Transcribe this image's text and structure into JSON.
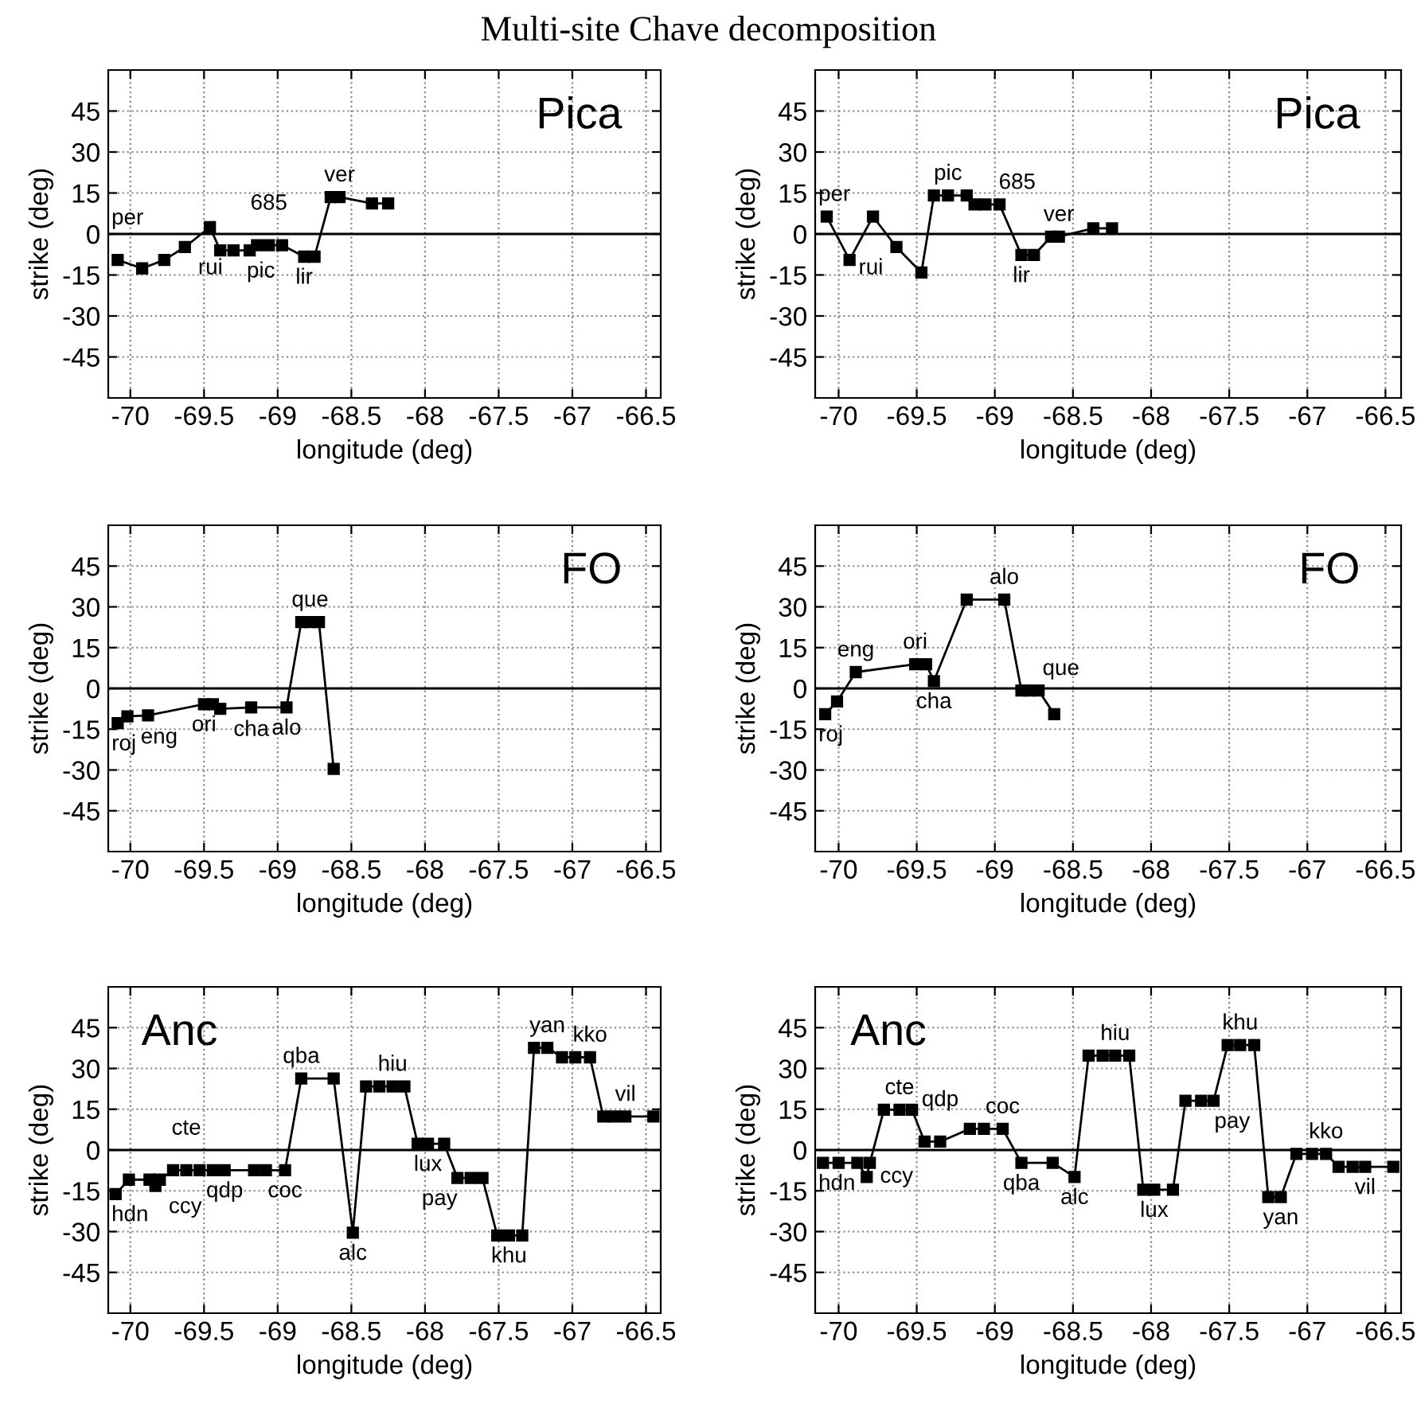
{
  "chart_data": [
    {
      "type": "line",
      "title": "Pica",
      "annotations": [
        "Multi-site Chave decomposition",
        {
          "text": "per",
          "x": -70.086,
          "y": -9.5
        },
        {
          "text": "rui",
          "x": -69.63,
          "y": -4.8
        },
        {
          "text": "pic",
          "x": -69.3,
          "y": -6.0
        },
        {
          "text": "685",
          "x": -69.06,
          "y": -4.1
        },
        {
          "text": "lir",
          "x": -68.82,
          "y": -8.3
        },
        {
          "text": "ver",
          "x": -68.58,
          "y": 13.5
        }
      ],
      "xlabel": "longitude (deg)",
      "ylabel": "strike (deg)",
      "xlim": [
        -70.15,
        -66.4
      ],
      "ylim": [
        -60,
        60
      ],
      "xticks": [
        -70,
        -69.5,
        -69,
        -68.5,
        -68,
        -67.5,
        -67,
        -66.5
      ],
      "yticks": [
        -45,
        -30,
        -15,
        0,
        15,
        30,
        45
      ],
      "grid": true,
      "marker": "square",
      "line_style": "solid",
      "ref_lines": [
        {
          "axis": "y",
          "value": 0
        }
      ],
      "series": [
        {
          "color": "#000000",
          "x": [
            -70.086,
            -69.92,
            -69.77,
            -69.63,
            -69.46,
            -69.39,
            -69.3,
            -69.19,
            -69.14,
            -69.06,
            -68.97,
            -68.82,
            -68.75,
            -68.64,
            -68.58,
            -68.36,
            -68.25
          ],
          "values": [
            -9.5,
            -12.6,
            -9.5,
            -4.8,
            2.5,
            -6.0,
            -6.0,
            -6.0,
            -4.1,
            -4.1,
            -4.1,
            -8.3,
            -8.3,
            13.5,
            13.5,
            11.2,
            11.2
          ]
        }
      ]
    },
    {
      "type": "line",
      "title": "Pica",
      "annotations": [
        {
          "text": "per",
          "x": -70.076,
          "y": 6.4
        },
        {
          "text": "rui",
          "x": -69.63,
          "y": -4.8
        },
        {
          "text": "pic",
          "x": -69.3,
          "y": 14.1
        },
        {
          "text": "685",
          "x": -69.06,
          "y": 10.8
        },
        {
          "text": "lir",
          "x": -68.83,
          "y": -7.7
        },
        {
          "text": "ver",
          "x": -68.59,
          "y": -1.0
        }
      ],
      "xlabel": "longitude (deg)",
      "ylabel": "strike (deg)",
      "xlim": [
        -70.15,
        -66.4
      ],
      "ylim": [
        -60,
        60
      ],
      "xticks": [
        -70,
        -69.5,
        -69,
        -68.5,
        -68,
        -67.5,
        -67,
        -66.5
      ],
      "yticks": [
        -45,
        -30,
        -15,
        0,
        15,
        30,
        45
      ],
      "grid": true,
      "marker": "square",
      "line_style": "solid",
      "ref_lines": [
        {
          "axis": "y",
          "value": 0
        }
      ],
      "series": [
        {
          "color": "#000000",
          "x": [
            -70.076,
            -69.93,
            -69.78,
            -69.63,
            -69.47,
            -69.39,
            -69.3,
            -69.18,
            -69.13,
            -69.06,
            -68.97,
            -68.83,
            -68.75,
            -68.64,
            -68.59,
            -68.37,
            -68.25
          ],
          "values": [
            6.4,
            -9.5,
            6.4,
            -4.8,
            -14.1,
            14.1,
            14.1,
            14.1,
            10.8,
            10.8,
            10.8,
            -7.7,
            -7.7,
            -1.0,
            -1.0,
            2.1,
            2.1
          ]
        }
      ]
    },
    {
      "type": "line",
      "title": "FO",
      "annotations": [
        {
          "text": "roj",
          "x": -70.086,
          "y": -12.8
        },
        {
          "text": "eng",
          "x": -70.02,
          "y": -10.3
        },
        {
          "text": "ori",
          "x": -69.5,
          "y": -5.8
        },
        {
          "text": "cha",
          "x": -69.39,
          "y": -7.5
        },
        {
          "text": "alo",
          "x": -68.94,
          "y": -7.0
        },
        {
          "text": "que",
          "x": -68.78,
          "y": 24.4
        }
      ],
      "xlabel": "longitude (deg)",
      "ylabel": "strike (deg)",
      "xlim": [
        -70.15,
        -66.4
      ],
      "ylim": [
        -60,
        60
      ],
      "xticks": [
        -70,
        -69.5,
        -69,
        -68.5,
        -68,
        -67.5,
        -67,
        -66.5
      ],
      "yticks": [
        -45,
        -30,
        -15,
        0,
        15,
        30,
        45
      ],
      "grid": true,
      "marker": "square",
      "line_style": "solid",
      "ref_lines": [
        {
          "axis": "y",
          "value": 0
        }
      ],
      "series": [
        {
          "color": "#000000",
          "x": [
            -70.086,
            -70.02,
            -69.88,
            -69.5,
            -69.44,
            -69.39,
            -69.18,
            -68.94,
            -68.84,
            -68.78,
            -68.72,
            -68.62
          ],
          "values": [
            -12.8,
            -10.3,
            -9.9,
            -5.8,
            -5.8,
            -7.5,
            -7.0,
            -7.0,
            24.4,
            24.4,
            24.4,
            -29.6
          ]
        }
      ]
    },
    {
      "type": "line",
      "title": "FO",
      "annotations": [
        {
          "text": "roj",
          "x": -70.086,
          "y": -9.5
        },
        {
          "text": "eng",
          "x": -69.89,
          "y": 6.0
        },
        {
          "text": "ori",
          "x": -69.51,
          "y": 8.9
        },
        {
          "text": "cha",
          "x": -69.39,
          "y": 2.7
        },
        {
          "text": "alo",
          "x": -68.94,
          "y": 32.7
        },
        {
          "text": "que",
          "x": -68.78,
          "y": -0.8
        }
      ],
      "xlabel": "longitude (deg)",
      "ylabel": "strike (deg)",
      "xlim": [
        -70.15,
        -66.4
      ],
      "ylim": [
        -60,
        60
      ],
      "xticks": [
        -70,
        -69.5,
        -69,
        -68.5,
        -68,
        -67.5,
        -67,
        -66.5
      ],
      "yticks": [
        -45,
        -30,
        -15,
        0,
        15,
        30,
        45
      ],
      "grid": true,
      "marker": "square",
      "line_style": "solid",
      "ref_lines": [
        {
          "axis": "y",
          "value": 0
        }
      ],
      "series": [
        {
          "color": "#000000",
          "x": [
            -70.086,
            -70.01,
            -69.89,
            -69.51,
            -69.44,
            -69.39,
            -69.18,
            -68.94,
            -68.83,
            -68.78,
            -68.72,
            -68.62
          ],
          "values": [
            -9.5,
            -4.8,
            6.0,
            8.9,
            8.9,
            2.7,
            32.7,
            32.7,
            -0.8,
            -0.8,
            -0.8,
            -9.5
          ]
        }
      ]
    },
    {
      "type": "line",
      "title": "Anc",
      "annotations": [
        {
          "text": "hdn",
          "x": -70.1,
          "y": -16.2
        },
        {
          "text": "ccy",
          "x": -69.83,
          "y": -13.2
        },
        {
          "text": "cte",
          "x": -69.62,
          "y": -7.4
        },
        {
          "text": "qdp",
          "x": -69.36,
          "y": -7.4
        },
        {
          "text": "coc",
          "x": -68.95,
          "y": -7.4
        },
        {
          "text": "qba",
          "x": -68.84,
          "y": 26.3
        },
        {
          "text": "alc",
          "x": -68.49,
          "y": -30.4
        },
        {
          "text": "hiu",
          "x": -68.22,
          "y": 23.4
        },
        {
          "text": "lux",
          "x": -67.98,
          "y": 2.3
        },
        {
          "text": "pay",
          "x": -67.69,
          "y": -10.3
        },
        {
          "text": "khu",
          "x": -67.43,
          "y": -31.4
        },
        {
          "text": "yan",
          "x": -67.17,
          "y": 37.6
        },
        {
          "text": "kko",
          "x": -66.88,
          "y": 34.1
        },
        {
          "text": "vil",
          "x": -66.64,
          "y": 12.3
        }
      ],
      "xlabel": "longitude (deg)",
      "ylabel": "strike (deg)",
      "xlim": [
        -70.15,
        -66.4
      ],
      "ylim": [
        -60,
        60
      ],
      "xticks": [
        -70,
        -69.5,
        -69,
        -68.5,
        -68,
        -67.5,
        -67,
        -66.5
      ],
      "yticks": [
        -45,
        -30,
        -15,
        0,
        15,
        30,
        45
      ],
      "grid": true,
      "marker": "square",
      "line_style": "solid",
      "ref_lines": [
        {
          "axis": "y",
          "value": 0
        }
      ],
      "series": [
        {
          "color": "#000000",
          "x": [
            -70.1,
            -70.01,
            -69.87,
            -69.83,
            -69.8,
            -69.71,
            -69.62,
            -69.53,
            -69.44,
            -69.36,
            -69.16,
            -69.08,
            -68.95,
            -68.84,
            -68.62,
            -68.49,
            -68.4,
            -68.31,
            -68.22,
            -68.14,
            -68.05,
            -67.98,
            -67.87,
            -67.78,
            -67.69,
            -67.61,
            -67.51,
            -67.43,
            -67.34,
            -67.26,
            -67.17,
            -67.07,
            -66.98,
            -66.88,
            -66.79,
            -66.72,
            -66.64,
            -66.45
          ],
          "values": [
            -16.2,
            -10.9,
            -10.9,
            -13.2,
            -10.9,
            -7.4,
            -7.4,
            -7.4,
            -7.4,
            -7.4,
            -7.4,
            -7.4,
            -7.4,
            26.3,
            26.3,
            -30.4,
            23.4,
            23.4,
            23.4,
            23.4,
            2.3,
            2.3,
            2.3,
            -10.3,
            -10.3,
            -10.3,
            -31.4,
            -31.4,
            -31.4,
            37.6,
            37.6,
            34.1,
            34.1,
            34.1,
            12.3,
            12.3,
            12.3,
            12.3
          ]
        }
      ]
    },
    {
      "type": "line",
      "title": "Anc",
      "annotations": [
        {
          "text": "hdn",
          "x": -70.1,
          "y": -4.7
        },
        {
          "text": "ccy",
          "x": -69.82,
          "y": -9.9
        },
        {
          "text": "cte",
          "x": -69.61,
          "y": 14.8
        },
        {
          "text": "qdp",
          "x": -69.35,
          "y": 3.1
        },
        {
          "text": "coc",
          "x": -68.95,
          "y": 7.8
        },
        {
          "text": "qba",
          "x": -68.83,
          "y": -4.7
        },
        {
          "text": "alc",
          "x": -68.49,
          "y": -9.9
        },
        {
          "text": "hiu",
          "x": -68.23,
          "y": 34.7
        },
        {
          "text": "lux",
          "x": -67.98,
          "y": -14.6
        },
        {
          "text": "pay",
          "x": -67.68,
          "y": 18.1
        },
        {
          "text": "khu",
          "x": -67.43,
          "y": 38.6
        },
        {
          "text": "yan",
          "x": -67.17,
          "y": -17.3
        },
        {
          "text": "kko",
          "x": -66.88,
          "y": -1.4
        },
        {
          "text": "vil",
          "x": -66.63,
          "y": -6.2
        }
      ],
      "xlabel": "longitude (deg)",
      "ylabel": "strike (deg)",
      "xlim": [
        -70.15,
        -66.4
      ],
      "ylim": [
        -60,
        60
      ],
      "xticks": [
        -70,
        -69.5,
        -69,
        -68.5,
        -68,
        -67.5,
        -67,
        -66.5
      ],
      "yticks": [
        -45,
        -30,
        -15,
        0,
        15,
        30,
        45
      ],
      "grid": true,
      "marker": "square",
      "line_style": "solid",
      "ref_lines": [
        {
          "axis": "y",
          "value": 0
        }
      ],
      "series": [
        {
          "color": "#000000",
          "x": [
            -70.1,
            -70.0,
            -69.88,
            -69.82,
            -69.8,
            -69.71,
            -69.61,
            -69.53,
            -69.45,
            -69.35,
            -69.16,
            -69.07,
            -68.95,
            -68.83,
            -68.63,
            -68.49,
            -68.4,
            -68.31,
            -68.23,
            -68.14,
            -68.05,
            -67.98,
            -67.86,
            -67.78,
            -67.68,
            -67.6,
            -67.51,
            -67.43,
            -67.34,
            -67.25,
            -67.17,
            -67.07,
            -66.97,
            -66.88,
            -66.8,
            -66.71,
            -66.63,
            -66.45
          ],
          "values": [
            -4.7,
            -4.7,
            -4.7,
            -9.9,
            -4.7,
            14.8,
            14.8,
            14.8,
            3.1,
            3.1,
            7.8,
            7.8,
            7.8,
            -4.7,
            -4.7,
            -9.9,
            34.7,
            34.7,
            34.7,
            34.7,
            -14.6,
            -14.6,
            -14.6,
            18.1,
            18.1,
            18.1,
            38.6,
            38.6,
            38.6,
            -17.3,
            -17.3,
            -1.4,
            -1.4,
            -1.4,
            -6.2,
            -6.2,
            -6.2,
            -6.2
          ]
        }
      ]
    }
  ]
}
